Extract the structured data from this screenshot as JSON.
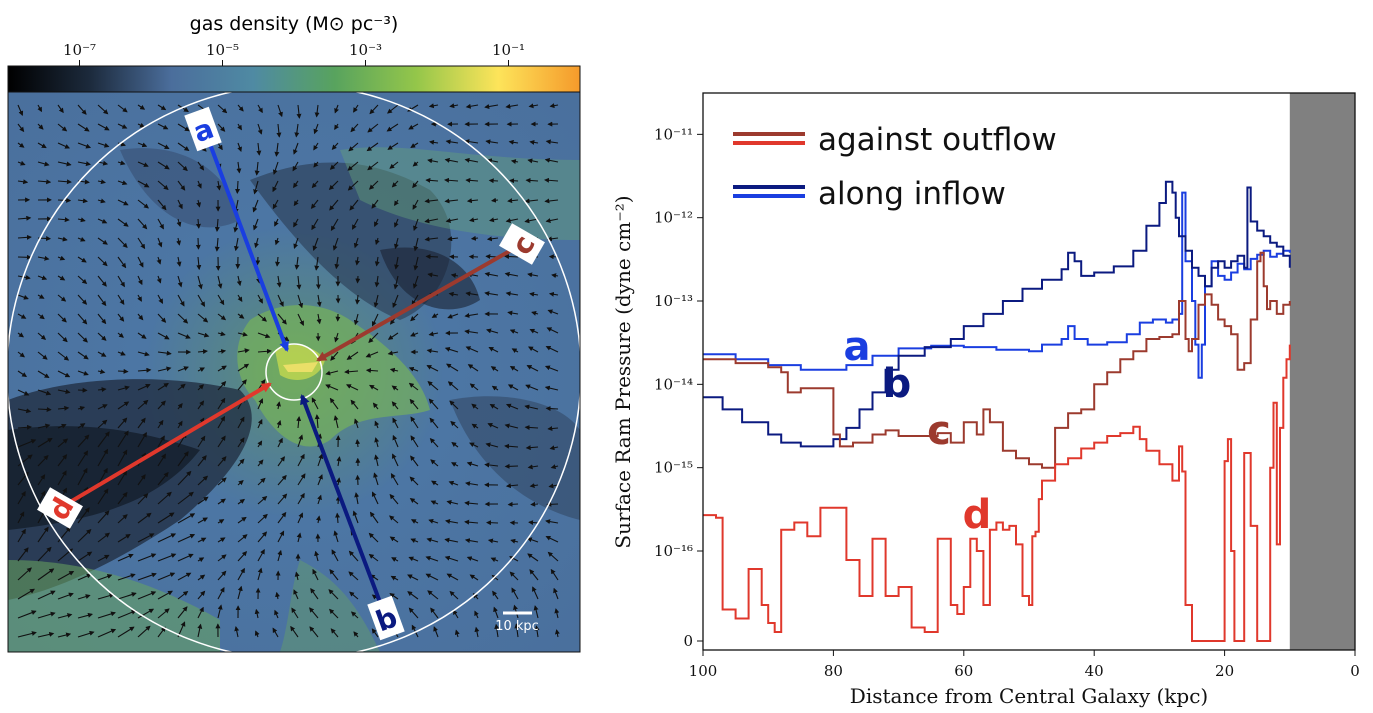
{
  "left_panel": {
    "colorbar": {
      "title": "gas density (M⊙ pc⁻³)",
      "scale": "log",
      "range": [
        1e-08,
        1
      ],
      "colors": [
        "#000000",
        "#1c2a3c",
        "#4b6e9c",
        "#4f8aa3",
        "#58a35e",
        "#94c64a",
        "#fde45a",
        "#f59a2b"
      ],
      "ticks": [
        {
          "label": "10⁻⁷",
          "value": 1e-07
        },
        {
          "label": "10⁻⁵",
          "value": 1e-05
        },
        {
          "label": "10⁻³",
          "value": 0.001
        },
        {
          "label": "10⁻¹",
          "value": 0.1
        }
      ]
    },
    "scale_bar_label": "10 kpc",
    "paths": [
      {
        "label": "a",
        "color": "#1a3ee0"
      },
      {
        "label": "b",
        "color": "#0b1a80"
      },
      {
        "label": "c",
        "color": "#9c3a2e"
      },
      {
        "label": "d",
        "color": "#e0382c"
      }
    ]
  },
  "chart_data": {
    "type": "line",
    "xlabel": "Distance from Central Galaxy (kpc)",
    "ylabel": "Surface Ram Pressure (dyne cm⁻²)",
    "xlim": [
      100,
      0
    ],
    "x_inverted": true,
    "y_scale": "symlog",
    "ylim": [
      -0.05,
      3.5e-11
    ],
    "xticks": [
      100,
      80,
      60,
      40,
      20,
      0
    ],
    "yticks": [
      {
        "value": 0,
        "label": "0"
      },
      {
        "value": 1e-16,
        "label": "10⁻¹⁶"
      },
      {
        "value": 1e-15,
        "label": "10⁻¹⁵"
      },
      {
        "value": 1e-14,
        "label": "10⁻¹⁴"
      },
      {
        "value": 1e-13,
        "label": "10⁻¹³"
      },
      {
        "value": 1e-12,
        "label": "10⁻¹²"
      },
      {
        "value": 1e-11,
        "label": "10⁻¹¹"
      }
    ],
    "shaded_region": {
      "x": [
        10,
        0
      ],
      "color": "#808080"
    },
    "legend": {
      "placement": "top-left",
      "entries": [
        {
          "label": "against outflow",
          "colors": [
            "#9c3a2e",
            "#e0382c"
          ]
        },
        {
          "label": "along inflow",
          "colors": [
            "#0b1a80",
            "#1a3ee0"
          ]
        }
      ]
    },
    "series": [
      {
        "label": "a",
        "color": "#1a3ee0",
        "x": [
          100,
          95,
          90,
          85,
          80,
          78,
          74,
          70,
          65,
          60,
          55,
          50,
          48,
          45,
          44,
          43,
          41,
          38,
          35,
          33,
          31,
          29,
          28,
          27,
          26.5,
          26,
          25,
          24.5,
          24,
          23.5,
          23,
          22,
          21,
          20,
          19,
          18,
          17,
          16,
          15,
          14,
          13,
          12,
          11,
          10
        ],
        "y": [
          2.3e-14,
          2e-14,
          1.7e-14,
          1.5e-14,
          1.5e-14,
          1.7e-14,
          2.2e-14,
          2.7e-14,
          2.9e-14,
          2.8e-14,
          2.6e-14,
          2.5e-14,
          3e-14,
          3.5e-14,
          5e-14,
          3.5e-14,
          3e-14,
          3.2e-14,
          4e-14,
          5.5e-14,
          6e-14,
          5.5e-14,
          6e-14,
          7e-14,
          2e-12,
          3e-13,
          1e-13,
          3e-14,
          1.2e-14,
          3e-14,
          1.5e-13,
          3e-13,
          2e-13,
          1.8e-13,
          2.2e-13,
          2.8e-13,
          2.4e-13,
          3.2e-13,
          3.6e-13,
          4e-13,
          3.4e-13,
          3.7e-13,
          4e-13,
          3.8e-13
        ]
      },
      {
        "label": "b",
        "color": "#0b1a80",
        "x": [
          100,
          97,
          94,
          90,
          88,
          85,
          82,
          80,
          78,
          76,
          74,
          72,
          70,
          66,
          62,
          60,
          57,
          54,
          51,
          48,
          45,
          44,
          43,
          42,
          40,
          37,
          34,
          32,
          30,
          29,
          28,
          27.5,
          27,
          26,
          25,
          24,
          23,
          22,
          21,
          20,
          19,
          18,
          17,
          16.5,
          16,
          15,
          14,
          13,
          12,
          11,
          10
        ],
        "y": [
          7e-15,
          5e-15,
          3.5e-15,
          2.5e-15,
          2e-15,
          1.8e-15,
          1.8e-15,
          2.2e-15,
          3e-15,
          5e-15,
          8e-15,
          1.5e-14,
          2.2e-14,
          2.8e-14,
          3.5e-14,
          5e-14,
          7e-14,
          1e-13,
          1.4e-13,
          1.8e-13,
          2.4e-13,
          3.8e-13,
          3e-13,
          2e-13,
          2.2e-13,
          2.6e-13,
          4e-13,
          8e-13,
          1.5e-12,
          2.7e-12,
          2e-12,
          1e-12,
          6e-13,
          4e-13,
          2.5e-13,
          2e-13,
          1.5e-13,
          2.5e-13,
          3e-13,
          2.5e-13,
          3e-13,
          3.5e-13,
          2.5e-13,
          2.3e-12,
          9e-13,
          7e-13,
          6e-13,
          5e-13,
          4.5e-13,
          3.5e-13,
          2.5e-13
        ]
      },
      {
        "label": "c",
        "color": "#9c3a2e",
        "x": [
          100,
          95,
          90,
          88,
          87,
          85,
          82,
          80,
          79,
          77,
          74,
          72,
          70,
          67,
          64,
          62,
          60,
          58,
          57,
          56,
          54,
          52,
          50,
          48,
          46,
          44,
          42,
          40,
          38,
          36,
          34,
          32,
          30,
          28,
          27,
          26,
          25.5,
          25,
          24,
          23,
          22,
          21,
          20,
          19,
          18,
          17,
          16,
          15,
          14.5,
          14,
          13.5,
          13,
          12,
          11,
          10
        ],
        "y": [
          2e-14,
          1.8e-14,
          1.6e-14,
          1.4e-14,
          8e-15,
          9e-15,
          9e-15,
          2.5e-15,
          1.8e-15,
          2e-15,
          2.5e-15,
          2.8e-15,
          2.4e-15,
          2.4e-15,
          2.6e-15,
          2e-15,
          3.5e-15,
          2.5e-15,
          5e-15,
          3.5e-15,
          1.6e-15,
          1.3e-15,
          1.1e-15,
          1e-15,
          3e-15,
          4.5e-15,
          5e-15,
          1e-14,
          1.4e-14,
          2e-14,
          2.5e-14,
          3.5e-14,
          3.7e-14,
          4e-14,
          1e-13,
          3.5e-14,
          2.5e-14,
          3.5e-14,
          9e-14,
          1.2e-13,
          9e-14,
          6e-14,
          5e-14,
          4e-14,
          1.5e-14,
          1.8e-14,
          6e-14,
          3e-13,
          3.8e-13,
          1.5e-13,
          8e-14,
          1e-13,
          7e-14,
          9e-14,
          1e-13
        ]
      },
      {
        "label": "d",
        "color": "#e0382c",
        "x": [
          100,
          98,
          97,
          95,
          93,
          91,
          90,
          89,
          88,
          86,
          84,
          82,
          80,
          78,
          76,
          74,
          72,
          70,
          68,
          66,
          64,
          62,
          61,
          60,
          59,
          58,
          57,
          56,
          55,
          54,
          53,
          52,
          51,
          50,
          49.5,
          49,
          48.5,
          48,
          46,
          44,
          42,
          40,
          38,
          36,
          34,
          33,
          32,
          30,
          28,
          27,
          26.5,
          26,
          25,
          24,
          23,
          22,
          21,
          20,
          19.5,
          19,
          18.5,
          18,
          17.5,
          17,
          16,
          15,
          14,
          13,
          12.5,
          12,
          11.5,
          11,
          10.5,
          10
        ],
        "y": [
          2.7e-16,
          2.5e-16,
          3.5e-17,
          2.5e-17,
          8e-17,
          4e-17,
          2e-17,
          1e-17,
          1.8e-16,
          2.2e-16,
          1.5e-16,
          3.3e-16,
          3.3e-16,
          9e-17,
          5e-17,
          1.4e-16,
          5e-17,
          6e-17,
          1.5e-17,
          1e-17,
          1.4e-16,
          4e-17,
          3e-17,
          6e-17,
          1.4e-16,
          1e-16,
          4e-17,
          1.8e-16,
          2.2e-16,
          1.8e-16,
          2e-16,
          1.2e-16,
          5e-17,
          4e-17,
          1.5e-16,
          1.7e-16,
          4.2e-16,
          7e-16,
          1.1e-15,
          1.3e-15,
          1.7e-15,
          2e-15,
          2.4e-15,
          2.6e-15,
          3.1e-15,
          2.2e-15,
          1.6e-15,
          1.1e-15,
          7e-16,
          1.8e-15,
          9e-16,
          4e-17,
          0,
          0,
          0,
          0,
          0,
          1.2e-15,
          2.2e-15,
          1e-16,
          0,
          0,
          0,
          1.5e-15,
          2e-16,
          0,
          0,
          1e-15,
          6e-15,
          1.2e-16,
          3e-15,
          1.2e-14,
          2e-14,
          3e-14
        ]
      }
    ]
  }
}
